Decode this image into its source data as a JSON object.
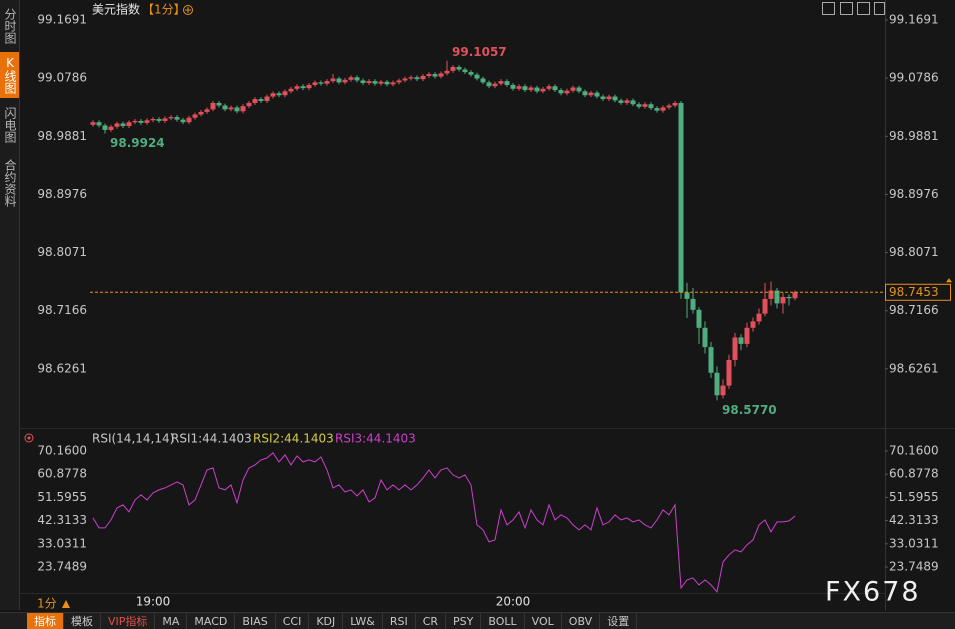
{
  "ui": {
    "sidebar": [
      "分时图",
      "K线图",
      "闪电图",
      "合约资料"
    ],
    "period": "1分",
    "toolbar": [
      "指标",
      "模板",
      "VIP指标",
      "MA",
      "MACD",
      "BIAS",
      "CCI",
      "KDJ",
      "LW&",
      "RSI",
      "CR",
      "PSY",
      "BOLL",
      "VOL",
      "OBV",
      "设置"
    ],
    "watermark": "FX678"
  },
  "chart_data": [
    {
      "type": "candlestick",
      "title": "美元指数",
      "period_label": "【1分】",
      "categories": [
        null,
        null,
        null,
        null,
        null,
        null,
        null,
        null,
        null,
        null,
        "19:00",
        null,
        null,
        null,
        null,
        null,
        null,
        null,
        null,
        null,
        null,
        null,
        null,
        null,
        null,
        null,
        null,
        null,
        null,
        null,
        null,
        null,
        null,
        null,
        null,
        null,
        null,
        null,
        null,
        null,
        null,
        null,
        null,
        null,
        null,
        null,
        null,
        null,
        null,
        null,
        null,
        null,
        null,
        null,
        null,
        null,
        null,
        null,
        null,
        null,
        null,
        null,
        null,
        null,
        null,
        null,
        null,
        null,
        null,
        null,
        "20:00",
        null,
        null,
        null,
        null,
        null,
        null,
        null,
        null,
        null,
        null,
        null,
        null,
        null,
        null,
        null,
        null,
        null,
        null,
        null,
        null,
        null,
        null,
        null,
        null,
        null,
        null,
        null,
        null,
        null,
        null,
        null,
        null,
        null,
        null,
        null,
        null,
        null,
        null,
        null,
        null,
        null,
        null,
        null,
        null,
        null,
        null,
        null
      ],
      "candles": [
        [
          99.006,
          99.013,
          99.003,
          99.01
        ],
        [
          99.01,
          99.013,
          99.002,
          99.005
        ],
        [
          99.005,
          99.008,
          98.9924,
          98.998
        ],
        [
          98.998,
          99.006,
          98.995,
          99.003
        ],
        [
          99.003,
          99.011,
          99.0,
          99.008
        ],
        [
          99.008,
          99.011,
          99.001,
          99.004
        ],
        [
          99.004,
          99.013,
          99.001,
          99.01
        ],
        [
          99.01,
          99.015,
          99.007,
          99.012
        ],
        [
          99.012,
          99.015,
          99.006,
          99.009
        ],
        [
          99.009,
          99.016,
          99.006,
          99.013
        ],
        [
          99.013,
          99.018,
          99.01,
          99.015
        ],
        [
          99.015,
          99.018,
          99.009,
          99.012
        ],
        [
          99.012,
          99.019,
          99.009,
          99.016
        ],
        [
          99.016,
          99.021,
          99.013,
          99.018
        ],
        [
          99.018,
          99.021,
          99.011,
          99.014
        ],
        [
          99.014,
          99.017,
          99.007,
          99.01
        ],
        [
          99.01,
          99.02,
          99.007,
          99.017
        ],
        [
          99.017,
          99.025,
          99.014,
          99.022
        ],
        [
          99.022,
          99.029,
          99.019,
          99.026
        ],
        [
          99.026,
          99.033,
          99.023,
          99.03
        ],
        [
          99.03,
          99.043,
          99.027,
          99.04
        ],
        [
          99.04,
          99.043,
          99.033,
          99.036
        ],
        [
          99.036,
          99.039,
          99.027,
          99.03
        ],
        [
          99.03,
          99.036,
          99.027,
          99.033
        ],
        [
          99.033,
          99.036,
          99.024,
          99.027
        ],
        [
          99.027,
          99.038,
          99.024,
          99.035
        ],
        [
          99.035,
          99.043,
          99.032,
          99.04
        ],
        [
          99.04,
          99.049,
          99.037,
          99.046
        ],
        [
          99.046,
          99.049,
          99.04,
          99.043
        ],
        [
          99.043,
          99.053,
          99.04,
          99.05
        ],
        [
          99.05,
          99.058,
          99.047,
          99.055
        ],
        [
          99.055,
          99.058,
          99.049,
          99.052
        ],
        [
          99.052,
          99.061,
          99.049,
          99.058
        ],
        [
          99.058,
          99.065,
          99.055,
          99.062
        ],
        [
          99.062,
          99.069,
          99.059,
          99.066
        ],
        [
          99.066,
          99.069,
          99.06,
          99.063
        ],
        [
          99.063,
          99.071,
          99.06,
          99.068
        ],
        [
          99.068,
          99.075,
          99.065,
          99.072
        ],
        [
          99.072,
          99.075,
          99.067,
          99.07
        ],
        [
          99.07,
          99.077,
          99.067,
          99.074
        ],
        [
          99.074,
          99.085,
          99.071,
          99.078
        ],
        [
          99.078,
          99.081,
          99.069,
          99.072
        ],
        [
          99.072,
          99.079,
          99.069,
          99.076
        ],
        [
          99.076,
          99.083,
          99.073,
          99.08
        ],
        [
          99.08,
          99.083,
          99.072,
          99.075
        ],
        [
          99.075,
          99.078,
          99.068,
          99.071
        ],
        [
          99.071,
          99.077,
          99.068,
          99.074
        ],
        [
          99.074,
          99.077,
          99.067,
          99.07
        ],
        [
          99.07,
          99.076,
          99.067,
          99.073
        ],
        [
          99.073,
          99.076,
          99.066,
          99.069
        ],
        [
          99.069,
          99.075,
          99.066,
          99.072
        ],
        [
          99.072,
          99.078,
          99.069,
          99.075
        ],
        [
          99.075,
          99.081,
          99.072,
          99.078
        ],
        [
          99.078,
          99.083,
          99.075,
          99.08
        ],
        [
          99.08,
          99.083,
          99.074,
          99.077
        ],
        [
          99.077,
          99.085,
          99.074,
          99.082
        ],
        [
          99.082,
          99.088,
          99.079,
          99.085
        ],
        [
          99.085,
          99.088,
          99.078,
          99.081
        ],
        [
          99.081,
          99.089,
          99.078,
          99.086
        ],
        [
          99.086,
          99.1057,
          99.083,
          99.09
        ],
        [
          99.09,
          99.099,
          99.087,
          99.096
        ],
        [
          99.096,
          99.099,
          99.089,
          99.092
        ],
        [
          99.092,
          99.095,
          99.085,
          99.088
        ],
        [
          99.088,
          99.091,
          99.081,
          99.084
        ],
        [
          99.084,
          99.087,
          99.075,
          99.078
        ],
        [
          99.078,
          99.081,
          99.069,
          99.072
        ],
        [
          99.072,
          99.075,
          99.063,
          99.066
        ],
        [
          99.066,
          99.073,
          99.063,
          99.07
        ],
        [
          99.07,
          99.077,
          99.067,
          99.074
        ],
        [
          99.074,
          99.077,
          99.065,
          99.068
        ],
        [
          99.068,
          99.071,
          99.059,
          99.062
        ],
        [
          99.062,
          99.069,
          99.059,
          99.066
        ],
        [
          99.066,
          99.069,
          99.057,
          99.06
        ],
        [
          99.06,
          99.067,
          99.057,
          99.064
        ],
        [
          99.064,
          99.067,
          99.055,
          99.058
        ],
        [
          99.058,
          99.065,
          99.055,
          99.062
        ],
        [
          99.062,
          99.069,
          99.059,
          99.066
        ],
        [
          99.066,
          99.069,
          99.057,
          99.06
        ],
        [
          99.06,
          99.063,
          99.052,
          99.055
        ],
        [
          99.055,
          99.062,
          99.052,
          99.059
        ],
        [
          99.059,
          99.067,
          99.056,
          99.064
        ],
        [
          99.064,
          99.067,
          99.055,
          99.058
        ],
        [
          99.058,
          99.061,
          99.049,
          99.052
        ],
        [
          99.052,
          99.059,
          99.049,
          99.056
        ],
        [
          99.056,
          99.059,
          99.047,
          99.05
        ],
        [
          99.05,
          99.053,
          99.043,
          99.046
        ],
        [
          99.046,
          99.053,
          99.043,
          99.05
        ],
        [
          99.05,
          99.053,
          99.041,
          99.044
        ],
        [
          99.044,
          99.047,
          99.037,
          99.04
        ],
        [
          99.04,
          99.047,
          99.037,
          99.044
        ],
        [
          99.044,
          99.047,
          99.035,
          99.038
        ],
        [
          99.038,
          99.041,
          99.031,
          99.034
        ],
        [
          99.034,
          99.041,
          99.031,
          99.038
        ],
        [
          99.038,
          99.041,
          99.029,
          99.032
        ],
        [
          99.032,
          99.035,
          99.025,
          99.028
        ],
        [
          99.028,
          99.036,
          99.025,
          99.033
        ],
        [
          99.033,
          99.039,
          99.03,
          99.036
        ],
        [
          99.036,
          99.043,
          99.033,
          99.04
        ],
        [
          99.04,
          99.043,
          98.735,
          98.745
        ],
        [
          98.745,
          98.76,
          98.705,
          98.735
        ],
        [
          98.735,
          98.752,
          98.712,
          98.718
        ],
        [
          98.718,
          98.722,
          98.665,
          98.69
        ],
        [
          98.69,
          98.7,
          98.65,
          98.66
        ],
        [
          98.66,
          98.668,
          98.612,
          98.62
        ],
        [
          98.62,
          98.63,
          98.577,
          98.585
        ],
        [
          98.585,
          98.61,
          98.58,
          98.6
        ],
        [
          98.6,
          98.648,
          98.595,
          98.64
        ],
        [
          98.64,
          98.682,
          98.63,
          98.675
        ],
        [
          98.675,
          98.68,
          98.655,
          98.665
        ],
        [
          98.665,
          98.698,
          98.66,
          98.69
        ],
        [
          98.69,
          98.706,
          98.684,
          98.7
        ],
        [
          98.7,
          98.72,
          98.695,
          98.712
        ],
        [
          98.712,
          98.76,
          98.708,
          98.735
        ],
        [
          98.735,
          98.762,
          98.725,
          98.748
        ],
        [
          98.748,
          98.752,
          98.72,
          98.728
        ],
        [
          98.728,
          98.745,
          98.712,
          98.738
        ],
        [
          98.738,
          98.742,
          98.725,
          98.736
        ],
        [
          98.736,
          98.748,
          98.733,
          98.7453
        ]
      ],
      "up_color": "#e2505e",
      "down_color": "#4fae7f",
      "ylim": [
        98.5356,
        99.1691
      ],
      "yticks": [
        99.1691,
        99.0786,
        98.9881,
        98.8976,
        98.8071,
        98.7166,
        98.6261
      ],
      "grid": false,
      "annotations": [
        {
          "label": "99.1057",
          "color": "#e2505e"
        },
        {
          "label": "98.9924",
          "color": "#4fae7f"
        },
        {
          "label": "98.5770",
          "color": "#4fae7f"
        }
      ],
      "last_price_label": "98.7453",
      "last_price_color": "#e8921a"
    },
    {
      "type": "line",
      "title": "RSI(14,14,14)",
      "series": [
        {
          "name": "RSI1:44.1403",
          "color": "#c8c8c8"
        },
        {
          "name": "RSI2:44.1403",
          "color": "#d4cb4a"
        },
        {
          "name": "RSI3:44.1403",
          "color": "#cc3fcc",
          "values": [
            43.4,
            39.4,
            39.4,
            42.6,
            47.4,
            48.6,
            45.8,
            50.6,
            52.6,
            50.6,
            53.4,
            54.6,
            55.4,
            56.6,
            57.8,
            56.6,
            48.6,
            50.6,
            56.6,
            62.6,
            63.4,
            55.4,
            54.6,
            56.6,
            49.4,
            58.6,
            63.4,
            64.6,
            66.6,
            67.4,
            69.4,
            65.8,
            68.6,
            64.6,
            68.2,
            65.8,
            66.6,
            65.8,
            67.8,
            62.6,
            55.4,
            56.6,
            53.8,
            54.6,
            52.2,
            54.6,
            49.8,
            51.4,
            58.6,
            54.6,
            56.6,
            54.6,
            56.6,
            54.6,
            56.6,
            59.4,
            62.6,
            59.4,
            62.6,
            63.4,
            60.6,
            59.4,
            60.6,
            56.6,
            40.6,
            38.6,
            33.8,
            34.6,
            46.6,
            40.6,
            42.6,
            45.8,
            39.4,
            46.6,
            42.6,
            40.6,
            48.6,
            42.6,
            44.6,
            43.4,
            40.6,
            38.6,
            40.6,
            38.6,
            47.4,
            40.6,
            41.8,
            44.6,
            42.6,
            43.4,
            41.8,
            42.6,
            40.6,
            39.4,
            42.6,
            46.6,
            44.6,
            48.6,
            15.4,
            18.6,
            19.4,
            16.6,
            18.6,
            16.6,
            13.8,
            25.8,
            28.6,
            30.6,
            29.8,
            32.6,
            34.6,
            40.6,
            42.6,
            37.8,
            41.8,
            41.8,
            42.2,
            44.1403
          ]
        }
      ],
      "ylim": [
        12.56,
        70.16
      ],
      "yticks": [
        {
          "value": 70.16,
          "label": "70.1600"
        },
        60.8778,
        51.5955,
        42.3133,
        33.0311,
        23.7489
      ]
    }
  ]
}
